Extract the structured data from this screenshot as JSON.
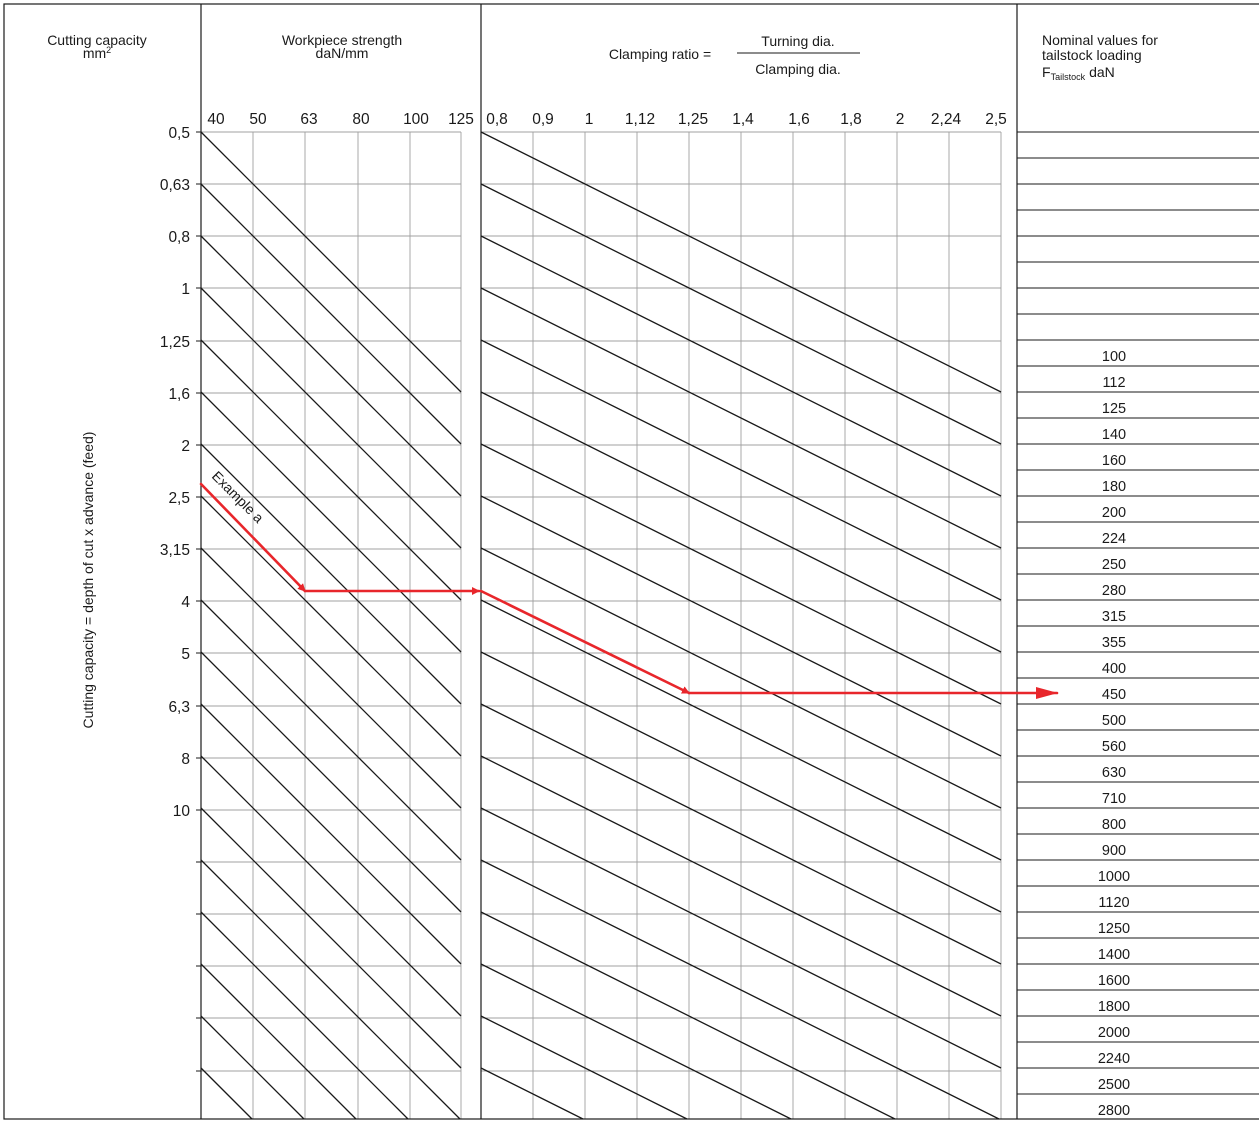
{
  "colors": {
    "ink": "#1a1a1a",
    "grid": "#a0a0a0",
    "example": "#e8262b"
  },
  "headers": {
    "cutting_capacity": "Cutting capacity",
    "cutting_capacity_unit": "mm",
    "cutting_capacity_unit_sup": "2",
    "workpiece_strength": "Workpiece strength",
    "workpiece_strength_unit": "daN/mm",
    "clamping_ratio": "Clamping ratio =",
    "clamping_numerator": "Turning dia.",
    "clamping_denominator": "Clamping dia.",
    "tailstock_line1": "Nominal values for",
    "tailstock_line2": "tailstock loading",
    "tailstock_f": "F",
    "tailstock_sub": "Tailstock",
    "tailstock_unit": "daN"
  },
  "y_axis_title": "Cutting capacity = depth of cut x advance (feed)",
  "example_label": "Example a",
  "chart_data": {
    "type": "nomogram",
    "panels": [
      {
        "name": "Cutting capacity",
        "unit": "mm2",
        "values": [
          "0,5",
          "0,63",
          "0,8",
          "1",
          "1,25",
          "1,6",
          "2",
          "2,5",
          "3,15",
          "4",
          "5",
          "6,3",
          "8",
          "10"
        ]
      },
      {
        "name": "Workpiece strength",
        "unit": "daN/mm",
        "x_ticks": [
          "40",
          "50",
          "63",
          "80",
          "100",
          "125"
        ]
      },
      {
        "name": "Clamping ratio = Turning dia. / Clamping dia.",
        "x_ticks": [
          "0,8",
          "0,9",
          "1",
          "1,12",
          "1,25",
          "1,4",
          "1,6",
          "1,8",
          "2",
          "2,24",
          "2,5"
        ]
      },
      {
        "name": "Nominal values for tailstock loading F Tailstock",
        "unit": "daN",
        "values": [
          "100",
          "112",
          "125",
          "140",
          "160",
          "180",
          "200",
          "224",
          "250",
          "280",
          "315",
          "355",
          "400",
          "450",
          "500",
          "560",
          "630",
          "710",
          "800",
          "900",
          "1000",
          "1120",
          "1250",
          "1400",
          "1600",
          "1800",
          "2000",
          "2240",
          "2500",
          "2800"
        ]
      }
    ],
    "example": {
      "label": "Example a",
      "cutting_capacity": "2,5",
      "workpiece_strength": "63",
      "clamping_ratio": "1,25",
      "tailstock_loading": "450"
    }
  }
}
